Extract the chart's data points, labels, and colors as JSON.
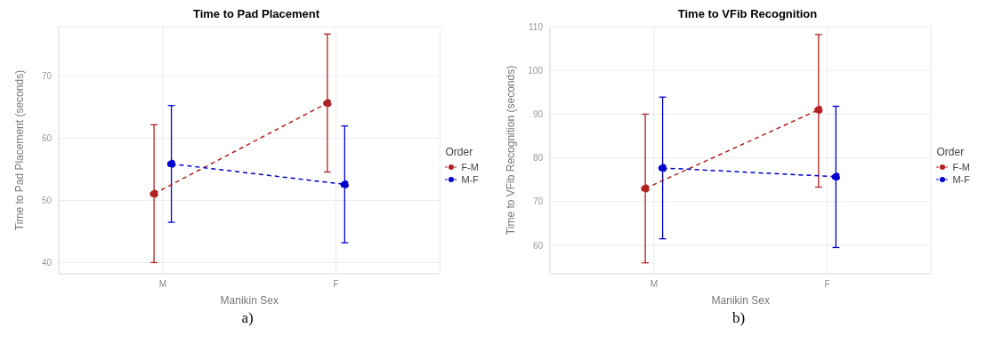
{
  "chart_data": [
    {
      "type": "line",
      "title": "Time to Pad Placement",
      "xlabel": "Manikin Sex",
      "ylabel": "Time to Pad Placement (seconds)",
      "legend_title": "Order",
      "categories": [
        "M",
        "F"
      ],
      "series": [
        {
          "name": "F-M",
          "color": "#b22222",
          "values": [
            51.1,
            65.7
          ],
          "errors": [
            [
              40,
              62.2
            ],
            [
              54.6,
              76.8
            ]
          ]
        },
        {
          "name": "M-F",
          "color": "#0000cd",
          "values": [
            55.9,
            52.6
          ],
          "errors": [
            [
              46.5,
              65.3
            ],
            [
              43.2,
              62
            ]
          ]
        }
      ],
      "ylim": [
        38.2,
        78
      ],
      "yticks": [
        40,
        50,
        60,
        70
      ],
      "grid": true,
      "legend": "right",
      "marker": "circle",
      "line_style": "dashed",
      "annotations": [
        "a)"
      ]
    },
    {
      "type": "line",
      "title": "Time to VFib Recognition",
      "xlabel": "Manikin Sex",
      "ylabel": "Time to VFib Recognition (seconds)",
      "legend_title": "Order",
      "categories": [
        "M",
        "F"
      ],
      "series": [
        {
          "name": "F-M",
          "color": "#b22222",
          "values": [
            73,
            91
          ],
          "errors": [
            [
              56,
              90
            ],
            [
              73.3,
              108.2
            ]
          ]
        },
        {
          "name": "M-F",
          "color": "#0000cd",
          "values": [
            77.7,
            75.7
          ],
          "errors": [
            [
              61.5,
              93.9
            ],
            [
              59.5,
              91.8
            ]
          ]
        }
      ],
      "ylim": [
        53.5,
        110
      ],
      "yticks": [
        60,
        70,
        80,
        90,
        100,
        110
      ],
      "grid": true,
      "legend": "right",
      "marker": "circle",
      "line_style": "dashed",
      "annotations": [
        "b)"
      ]
    }
  ]
}
